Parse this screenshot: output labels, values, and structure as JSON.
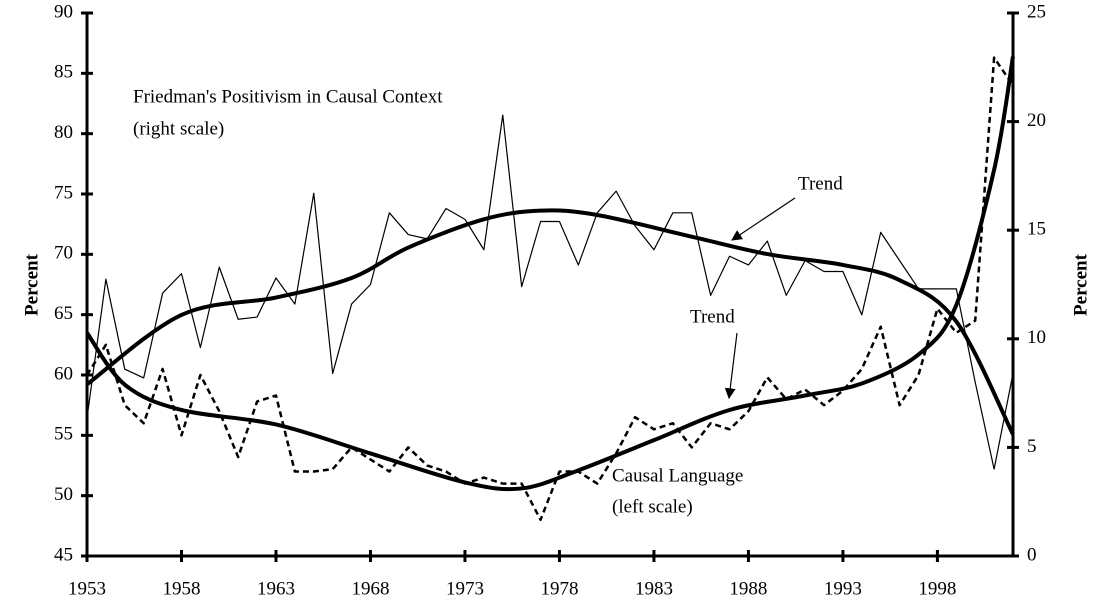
{
  "chart_data": {
    "type": "line",
    "x": [
      1953,
      1954,
      1955,
      1956,
      1957,
      1958,
      1959,
      1960,
      1961,
      1962,
      1963,
      1964,
      1965,
      1966,
      1967,
      1968,
      1969,
      1970,
      1971,
      1972,
      1973,
      1974,
      1975,
      1976,
      1977,
      1978,
      1979,
      1980,
      1981,
      1982,
      1983,
      1984,
      1985,
      1986,
      1987,
      1988,
      1989,
      1990,
      1991,
      1992,
      1993,
      1994,
      1995,
      1996,
      1997,
      1998,
      1999,
      2000,
      2001,
      2002
    ],
    "series": [
      {
        "color": "#000000",
        "style": "solid",
        "axis": "y2",
        "values": [
          6.35,
          12.75,
          8.6,
          8.2,
          12.1,
          13.0,
          9.6,
          13.3,
          10.9,
          11.0,
          12.8,
          11.6,
          16.7,
          8.4,
          11.6,
          12.5,
          15.8,
          14.8,
          14.6,
          16.0,
          15.5,
          14.1,
          20.3,
          12.4,
          15.4,
          15.4,
          13.4,
          15.8,
          16.8,
          15.2,
          14.1,
          15.8,
          15.8,
          12.0,
          13.8,
          13.4,
          14.5,
          12.0,
          13.6,
          13.1,
          13.1,
          11.1,
          14.9,
          13.6,
          12.3,
          12.3,
          12.3,
          8.0,
          4.0,
          8.4
        ]
      },
      {
        "color": "#000000",
        "style": "dashed",
        "values": [
          60,
          62.5,
          57.5,
          56,
          60.5,
          55,
          60,
          57,
          53.2,
          57.8,
          58.3,
          52,
          52,
          52.2,
          54,
          53,
          52,
          54,
          52.5,
          52,
          51,
          51.5,
          51,
          51,
          48,
          52,
          52,
          51,
          53.5,
          56.5,
          55.5,
          56,
          54,
          56,
          55.5,
          57,
          59.8,
          58,
          58.8,
          57.5,
          58.7,
          60.5,
          64,
          57.5,
          60,
          65.5,
          63.5,
          64.5,
          86.3,
          84
        ]
      },
      {
        "color": "#000000",
        "style": "trend",
        "axis": "y2",
        "x": [
          1953,
          1958,
          1963,
          1967,
          1970,
          1974,
          1977,
          1980,
          1985,
          1989,
          1993,
          1996,
          1999,
          2002
        ],
        "values": [
          7.9,
          11.1,
          11.9,
          12.8,
          14.2,
          15.5,
          15.9,
          15.7,
          14.7,
          13.9,
          13.4,
          12.7,
          10.8,
          5.6
        ]
      },
      {
        "color": "#000000",
        "style": "trend",
        "x": [
          1953,
          1955,
          1958,
          1963,
          1968,
          1973,
          1976,
          1979,
          1983,
          1987,
          1991,
          1994,
          1997,
          1999,
          2001,
          2002
        ],
        "values": [
          63.5,
          59.2,
          57.1,
          55.9,
          53.5,
          51.1,
          50.6,
          52.1,
          54.6,
          57.1,
          58.3,
          59.3,
          61.7,
          65.8,
          77,
          86.4
        ]
      }
    ],
    "annotations": [
      "Friedman's Positivism in Causal Context",
      "(right scale)",
      "Trend",
      "Trend",
      "Causal Language",
      "(left scale)"
    ],
    "ylabel": "Percent",
    "y2label": "Percent",
    "xlim": [
      1953,
      2002
    ],
    "xticks": [
      1953,
      1958,
      1963,
      1968,
      1973,
      1978,
      1983,
      1988,
      1993,
      1998
    ],
    "ylim": [
      45,
      90
    ],
    "yticks": [
      45,
      50,
      55,
      60,
      65,
      70,
      75,
      80,
      85,
      90
    ],
    "y2lim": [
      0,
      25
    ],
    "y2ticks": [
      0,
      5,
      10,
      15,
      20,
      25
    ]
  }
}
